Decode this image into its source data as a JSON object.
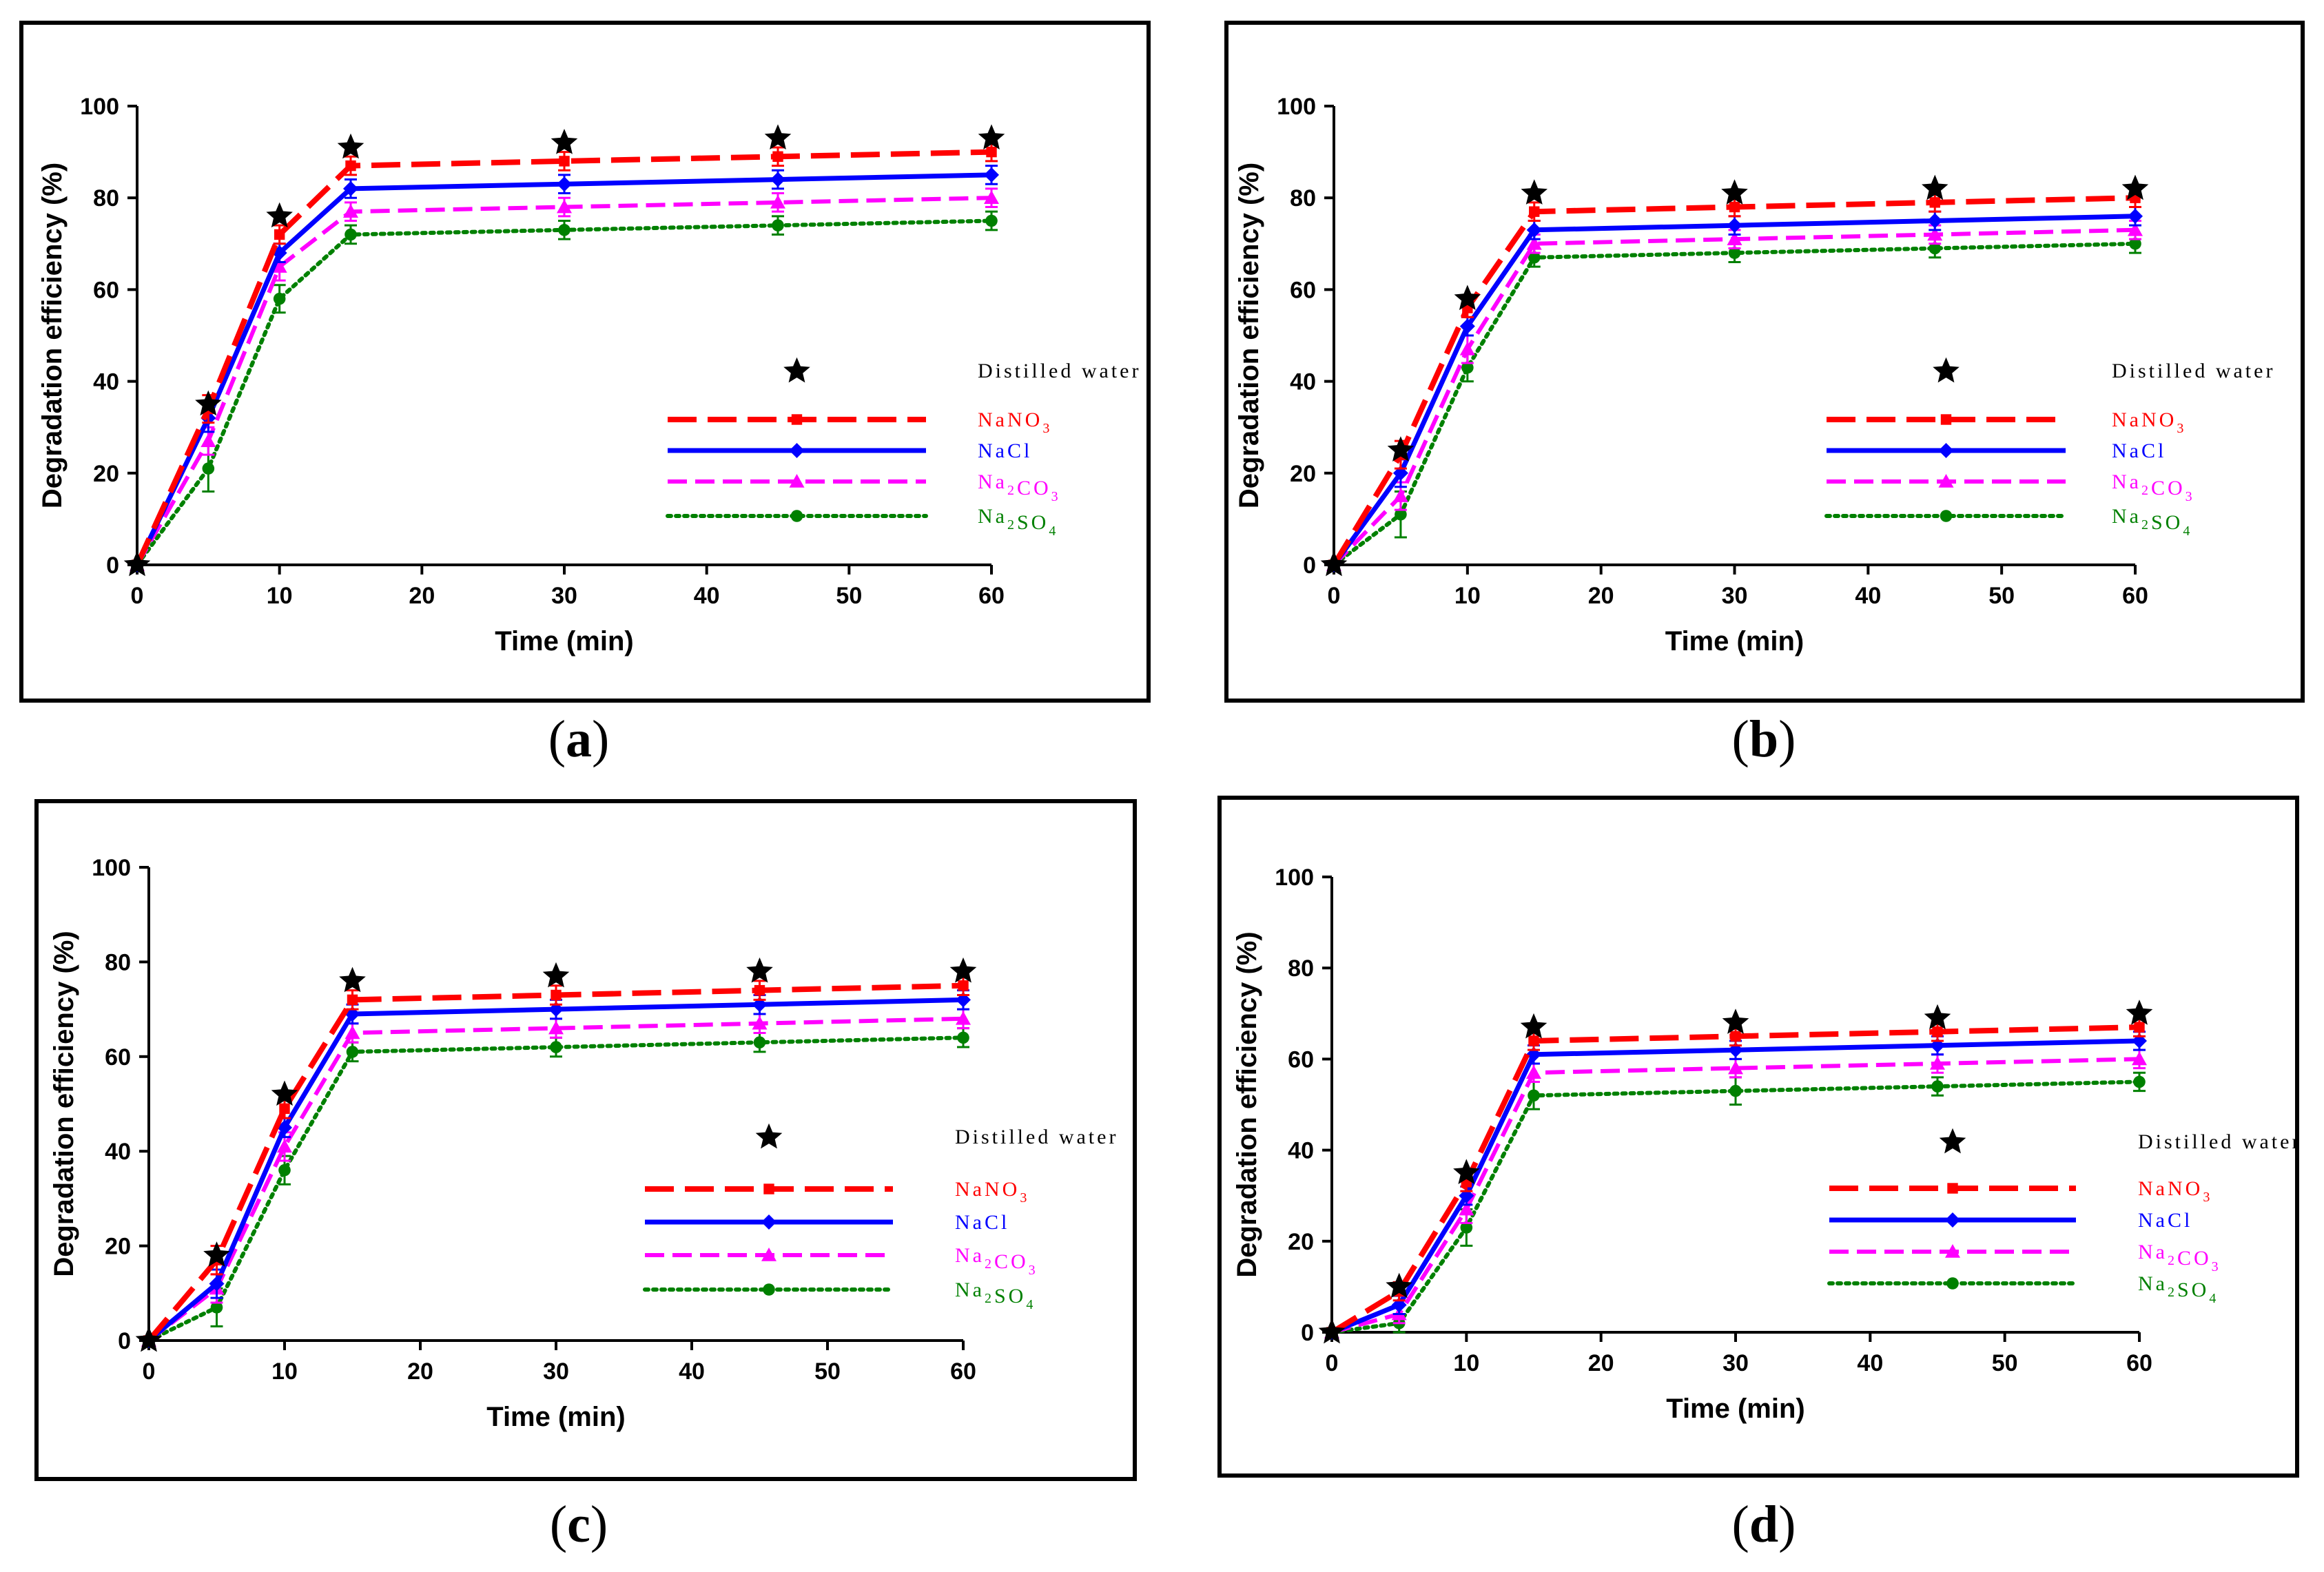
{
  "colors": {
    "distilled": "#000000",
    "nano3": "#ff0000",
    "nacl": "#0000ff",
    "na2co3": "#ff00ff",
    "na2so4": "#008000"
  },
  "captions": [
    "a",
    "b",
    "c",
    "d"
  ],
  "legend": {
    "distilled": "Distilled water",
    "nano3": {
      "pre": "NaNO",
      "sub": "3",
      "post": ""
    },
    "nacl": "NaCl",
    "na2co3": {
      "pre": "Na",
      "sub": "2",
      "post": "CO",
      "sub2": "3"
    },
    "na2so4": {
      "pre": "Na",
      "sub": "2",
      "post": "SO",
      "sub2": "4"
    }
  },
  "chart_data": [
    {
      "panel": "a",
      "type": "line",
      "xlabel": "Time (min)",
      "ylabel": "Degradation efficiency (%)",
      "xlim": [
        0,
        60
      ],
      "ylim": [
        0,
        100
      ],
      "xticks": [
        0,
        10,
        20,
        30,
        40,
        50,
        60
      ],
      "yticks": [
        0,
        20,
        40,
        60,
        80,
        100
      ],
      "x": [
        0,
        5,
        10,
        15,
        30,
        45,
        60
      ],
      "series": [
        {
          "name": "Distilled water",
          "key": "distilled",
          "values": [
            0,
            35,
            76,
            91,
            92,
            93,
            93
          ]
        },
        {
          "name": "NaNO3",
          "key": "nano3",
          "values": [
            0,
            34,
            72,
            87,
            88,
            89,
            90
          ],
          "err": [
            0,
            3,
            2,
            2,
            2,
            2,
            2
          ]
        },
        {
          "name": "NaCl",
          "key": "nacl",
          "values": [
            0,
            32,
            68,
            82,
            83,
            84,
            85
          ],
          "err": [
            0,
            3,
            2,
            2,
            2,
            2,
            2
          ]
        },
        {
          "name": "Na2CO3",
          "key": "na2co3",
          "values": [
            0,
            27,
            65,
            77,
            78,
            79,
            80
          ],
          "err": [
            0,
            3,
            3,
            2,
            2,
            2,
            2
          ]
        },
        {
          "name": "Na2SO4",
          "key": "na2so4",
          "values": [
            0,
            21,
            58,
            72,
            73,
            74,
            75
          ],
          "err": [
            0,
            5,
            3,
            2,
            2,
            2,
            2
          ]
        }
      ]
    },
    {
      "panel": "b",
      "type": "line",
      "xlabel": "Time (min)",
      "ylabel": "Degradation efficiency (%)",
      "xlim": [
        0,
        60
      ],
      "ylim": [
        0,
        100
      ],
      "xticks": [
        0,
        10,
        20,
        30,
        40,
        50,
        60
      ],
      "yticks": [
        0,
        20,
        40,
        60,
        80,
        100
      ],
      "x": [
        0,
        5,
        10,
        15,
        30,
        45,
        60
      ],
      "series": [
        {
          "name": "Distilled water",
          "key": "distilled",
          "values": [
            0,
            25,
            58,
            81,
            81,
            82,
            82
          ]
        },
        {
          "name": "NaNO3",
          "key": "nano3",
          "values": [
            0,
            24,
            56,
            77,
            78,
            79,
            80
          ],
          "err": [
            0,
            3,
            2,
            2,
            2,
            2,
            2
          ]
        },
        {
          "name": "NaCl",
          "key": "nacl",
          "values": [
            0,
            20,
            52,
            73,
            74,
            75,
            76
          ],
          "err": [
            0,
            3,
            2,
            2,
            2,
            2,
            2
          ]
        },
        {
          "name": "Na2CO3",
          "key": "na2co3",
          "values": [
            0,
            15,
            47,
            70,
            71,
            72,
            73
          ],
          "err": [
            0,
            3,
            3,
            2,
            2,
            2,
            2
          ]
        },
        {
          "name": "Na2SO4",
          "key": "na2so4",
          "values": [
            0,
            11,
            43,
            67,
            68,
            69,
            70
          ],
          "err": [
            0,
            5,
            3,
            2,
            2,
            2,
            2
          ]
        }
      ]
    },
    {
      "panel": "c",
      "type": "line",
      "xlabel": "Time (min)",
      "ylabel": "Degradation efficiency (%)",
      "xlim": [
        0,
        60
      ],
      "ylim": [
        0,
        100
      ],
      "xticks": [
        0,
        10,
        20,
        30,
        40,
        50,
        60
      ],
      "yticks": [
        0,
        20,
        40,
        60,
        80,
        100
      ],
      "x": [
        0,
        5,
        10,
        15,
        30,
        45,
        60
      ],
      "series": [
        {
          "name": "Distilled water",
          "key": "distilled",
          "values": [
            0,
            18,
            52,
            76,
            77,
            78,
            78
          ]
        },
        {
          "name": "NaNO3",
          "key": "nano3",
          "values": [
            0,
            17,
            49,
            72,
            73,
            74,
            75
          ],
          "err": [
            0,
            3,
            2,
            2,
            2,
            2,
            2
          ]
        },
        {
          "name": "NaCl",
          "key": "nacl",
          "values": [
            0,
            12,
            45,
            69,
            70,
            71,
            72
          ],
          "err": [
            0,
            3,
            2,
            2,
            2,
            2,
            2
          ]
        },
        {
          "name": "Na2CO3",
          "key": "na2co3",
          "values": [
            0,
            11,
            41,
            65,
            66,
            67,
            68
          ],
          "err": [
            0,
            3,
            3,
            2,
            2,
            2,
            2
          ]
        },
        {
          "name": "Na2SO4",
          "key": "na2so4",
          "values": [
            0,
            7,
            36,
            61,
            62,
            63,
            64
          ],
          "err": [
            0,
            4,
            3,
            2,
            2,
            2,
            2
          ]
        }
      ]
    },
    {
      "panel": "d",
      "type": "line",
      "xlabel": "Time (min)",
      "ylabel": "Degradation efficiency (%)",
      "xlim": [
        0,
        60
      ],
      "ylim": [
        0,
        100
      ],
      "xticks": [
        0,
        10,
        20,
        30,
        40,
        50,
        60
      ],
      "yticks": [
        0,
        20,
        40,
        60,
        80,
        100
      ],
      "x": [
        0,
        5,
        10,
        15,
        30,
        45,
        60
      ],
      "series": [
        {
          "name": "Distilled water",
          "key": "distilled",
          "values": [
            0,
            10,
            35,
            67,
            68,
            69,
            70
          ]
        },
        {
          "name": "NaNO3",
          "key": "nano3",
          "values": [
            0,
            9,
            33,
            64,
            65,
            66,
            67
          ],
          "err": [
            0,
            2,
            2,
            2,
            2,
            2,
            2
          ]
        },
        {
          "name": "NaCl",
          "key": "nacl",
          "values": [
            0,
            6,
            30,
            61,
            62,
            63,
            64
          ],
          "err": [
            0,
            2,
            2,
            2,
            2,
            2,
            2
          ]
        },
        {
          "name": "Na2CO3",
          "key": "na2co3",
          "values": [
            0,
            4,
            27,
            57,
            58,
            59,
            60
          ],
          "err": [
            0,
            2,
            3,
            2,
            2,
            2,
            2
          ]
        },
        {
          "name": "Na2SO4",
          "key": "na2so4",
          "values": [
            0,
            2,
            23,
            52,
            53,
            54,
            55
          ],
          "err": [
            0,
            2,
            4,
            3,
            3,
            2,
            2
          ]
        }
      ]
    }
  ]
}
